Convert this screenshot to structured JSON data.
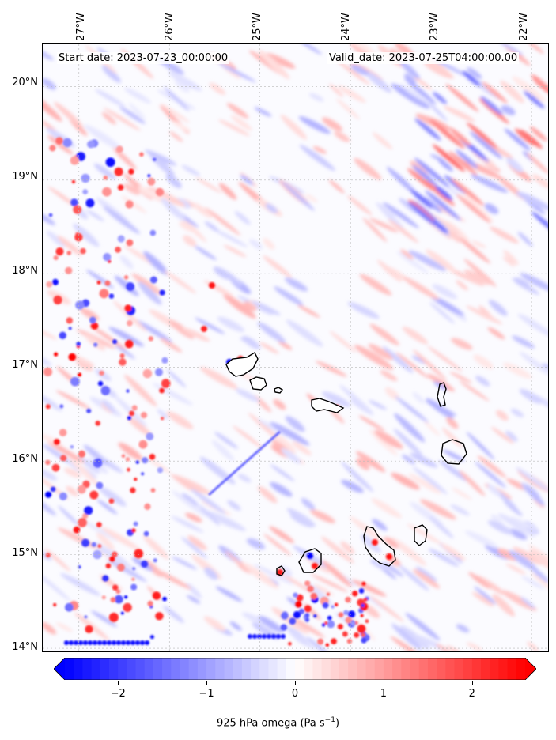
{
  "header": {
    "start_date": "Start date: 2023-07-23_00:00:00",
    "valid_date": "Valid_date: 2023-07-25T04:00:00.00"
  },
  "axes": {
    "lon_labels": [
      "27°W",
      "26°W",
      "25°W",
      "24°W",
      "23°W",
      "22°W"
    ],
    "lat_labels": [
      "20°N",
      "19°N",
      "18°N",
      "17°N",
      "16°N",
      "15°N",
      "14°N"
    ],
    "lon_values": [
      -27,
      -26,
      -25,
      -24,
      -23,
      -22
    ],
    "lat_values": [
      20,
      19,
      18,
      17,
      16,
      15,
      14
    ],
    "lon_range": [
      -27.4,
      -21.8
    ],
    "lat_range": [
      13.95,
      20.45
    ],
    "gridlines": true
  },
  "colorbar": {
    "label_main": "925 hPa omega (Pa s",
    "label_sup": "−1",
    "label_end": ")",
    "ticks": [
      "−2",
      "−1",
      "0",
      "1",
      "2"
    ],
    "tick_values": [
      -2,
      -1,
      0,
      1,
      2
    ],
    "range": [
      -2.6,
      2.6
    ],
    "extend": "both",
    "colormap": "bwr",
    "min_color": "#0000ff",
    "mid_color": "#ffffff",
    "max_color": "#ff0000"
  },
  "field": {
    "variable": "925 hPa omega",
    "units": "Pa s-1",
    "pattern": "banded waves oriented NW-SE; strong small-scale convective cells along western edge and near southern islands"
  }
}
